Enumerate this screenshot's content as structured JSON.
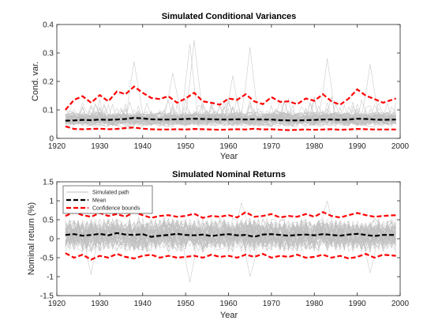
{
  "chart_data": [
    {
      "type": "line",
      "title": "Simulated Conditional Variances",
      "xlabel": "Year",
      "ylabel": "Cond. var.",
      "xlim": [
        1920,
        2000
      ],
      "ylim": [
        0,
        0.4
      ],
      "xticks": [
        1920,
        1930,
        1940,
        1950,
        1960,
        1970,
        1980,
        1990,
        2000
      ],
      "yticks": [
        0,
        0.1,
        0.2,
        0.3,
        0.4
      ],
      "xtick_labels": [
        "1920",
        "1930",
        "1940",
        "1950",
        "1960",
        "1970",
        "1980",
        "1990",
        "2000"
      ],
      "ytick_labels": [
        "0",
        "0.1",
        "0.2",
        "0.3",
        "0.4"
      ],
      "grid": false,
      "series": [
        {
          "role": "simulated-paths",
          "color": "#c0c0c0",
          "x_start": 1922,
          "x_end": 1999,
          "center": 0.065,
          "spread": 0.045,
          "floor": 0.02,
          "spikes": [
            [
              1951,
              0.33
            ],
            [
              1952,
              0.345
            ],
            [
              1965,
              0.32
            ],
            [
              1938,
              0.27
            ],
            [
              1983,
              0.28
            ],
            [
              1993,
              0.26
            ],
            [
              1947,
              0.23
            ],
            [
              1961,
              0.22
            ]
          ]
        },
        {
          "role": "mean",
          "color": "#000000",
          "x": [
            1922,
            1924,
            1926,
            1928,
            1930,
            1932,
            1934,
            1936,
            1938,
            1940,
            1942,
            1944,
            1946,
            1948,
            1950,
            1952,
            1954,
            1956,
            1958,
            1960,
            1962,
            1964,
            1966,
            1968,
            1970,
            1972,
            1974,
            1976,
            1978,
            1980,
            1982,
            1984,
            1986,
            1988,
            1990,
            1992,
            1994,
            1996,
            1999
          ],
          "y": [
            0.062,
            0.063,
            0.065,
            0.064,
            0.066,
            0.065,
            0.066,
            0.068,
            0.072,
            0.07,
            0.067,
            0.066,
            0.066,
            0.067,
            0.068,
            0.069,
            0.068,
            0.067,
            0.066,
            0.066,
            0.067,
            0.066,
            0.067,
            0.066,
            0.066,
            0.064,
            0.063,
            0.063,
            0.064,
            0.065,
            0.066,
            0.066,
            0.065,
            0.066,
            0.069,
            0.068,
            0.066,
            0.065,
            0.066
          ]
        },
        {
          "role": "upper-bound",
          "color": "#ff0000",
          "x": [
            1922,
            1924,
            1926,
            1928,
            1930,
            1932,
            1934,
            1936,
            1938,
            1940,
            1942,
            1944,
            1946,
            1948,
            1950,
            1952,
            1954,
            1956,
            1958,
            1960,
            1962,
            1964,
            1966,
            1968,
            1970,
            1972,
            1974,
            1976,
            1978,
            1980,
            1982,
            1984,
            1986,
            1988,
            1990,
            1992,
            1994,
            1996,
            1999
          ],
          "y": [
            0.1,
            0.135,
            0.148,
            0.125,
            0.152,
            0.13,
            0.165,
            0.155,
            0.182,
            0.16,
            0.142,
            0.138,
            0.148,
            0.125,
            0.14,
            0.16,
            0.13,
            0.125,
            0.118,
            0.14,
            0.135,
            0.155,
            0.13,
            0.12,
            0.145,
            0.128,
            0.13,
            0.12,
            0.14,
            0.132,
            0.155,
            0.13,
            0.118,
            0.14,
            0.172,
            0.15,
            0.138,
            0.125,
            0.14
          ]
        },
        {
          "role": "lower-bound",
          "color": "#ff0000",
          "x": [
            1922,
            1924,
            1926,
            1928,
            1930,
            1932,
            1934,
            1936,
            1938,
            1940,
            1942,
            1944,
            1946,
            1948,
            1950,
            1952,
            1954,
            1956,
            1958,
            1960,
            1962,
            1964,
            1966,
            1968,
            1970,
            1972,
            1974,
            1976,
            1978,
            1980,
            1982,
            1984,
            1986,
            1988,
            1990,
            1992,
            1994,
            1996,
            1999
          ],
          "y": [
            0.042,
            0.033,
            0.032,
            0.033,
            0.034,
            0.032,
            0.033,
            0.036,
            0.038,
            0.034,
            0.032,
            0.031,
            0.031,
            0.032,
            0.031,
            0.033,
            0.032,
            0.031,
            0.03,
            0.031,
            0.032,
            0.031,
            0.034,
            0.031,
            0.032,
            0.03,
            0.029,
            0.03,
            0.031,
            0.03,
            0.031,
            0.032,
            0.03,
            0.031,
            0.033,
            0.032,
            0.031,
            0.031,
            0.031
          ]
        }
      ]
    },
    {
      "type": "line",
      "title": "Simulated Nominal Returns",
      "xlabel": "Year",
      "ylabel": "Nominal return (%)",
      "xlim": [
        1920,
        2000
      ],
      "ylim": [
        -1.5,
        1.5
      ],
      "xticks": [
        1920,
        1930,
        1940,
        1950,
        1960,
        1970,
        1980,
        1990,
        2000
      ],
      "yticks": [
        -1.5,
        -1,
        -0.5,
        0,
        0.5,
        1,
        1.5
      ],
      "xtick_labels": [
        "1920",
        "1930",
        "1940",
        "1950",
        "1960",
        "1970",
        "1980",
        "1990",
        "2000"
      ],
      "ytick_labels": [
        "-1.5",
        "-1",
        "-0.5",
        "0",
        "0.5",
        "1",
        "1.5"
      ],
      "grid": false,
      "legend": {
        "placement": "top-left",
        "entries": [
          "Simulated path",
          "Mean",
          "Confidence bounds"
        ]
      },
      "series": [
        {
          "role": "simulated-paths",
          "name": "Simulated path",
          "color": "#c0c0c0",
          "x_start": 1922,
          "x_end": 1999,
          "center": 0.1,
          "spread": 0.3,
          "spikes": [
            [
              1951,
              -1.15
            ],
            [
              1965,
              -1.0
            ],
            [
              1938,
              1.05
            ],
            [
              1983,
              1.0
            ],
            [
              1963,
              0.95
            ],
            [
              1928,
              -0.95
            ],
            [
              1993,
              -0.9
            ]
          ]
        },
        {
          "role": "mean",
          "name": "Mean",
          "color": "#000000",
          "x": [
            1922,
            1924,
            1926,
            1928,
            1930,
            1932,
            1934,
            1936,
            1938,
            1940,
            1942,
            1944,
            1946,
            1948,
            1950,
            1952,
            1954,
            1956,
            1958,
            1960,
            1962,
            1964,
            1966,
            1968,
            1970,
            1972,
            1974,
            1976,
            1978,
            1980,
            1982,
            1984,
            1986,
            1988,
            1990,
            1992,
            1994,
            1996,
            1999
          ],
          "y": [
            0.1,
            0.12,
            0.08,
            0.1,
            0.13,
            0.09,
            0.15,
            0.11,
            0.1,
            0.12,
            0.05,
            0.08,
            0.1,
            0.13,
            0.1,
            0.09,
            0.11,
            0.07,
            0.1,
            0.12,
            0.09,
            0.1,
            0.05,
            0.11,
            0.12,
            0.1,
            0.08,
            0.1,
            0.11,
            0.09,
            0.12,
            0.1,
            0.08,
            0.11,
            0.13,
            0.1,
            0.07,
            0.1,
            0.1
          ]
        },
        {
          "role": "upper-bound",
          "name": "Confidence bounds",
          "color": "#ff0000",
          "x": [
            1922,
            1924,
            1926,
            1928,
            1930,
            1932,
            1934,
            1936,
            1938,
            1940,
            1942,
            1944,
            1946,
            1948,
            1950,
            1952,
            1954,
            1956,
            1958,
            1960,
            1962,
            1964,
            1966,
            1968,
            1970,
            1972,
            1974,
            1976,
            1978,
            1980,
            1982,
            1984,
            1986,
            1988,
            1990,
            1992,
            1994,
            1996,
            1999
          ],
          "y": [
            0.6,
            0.7,
            0.62,
            0.58,
            0.68,
            0.6,
            0.65,
            0.58,
            0.7,
            0.62,
            0.55,
            0.6,
            0.62,
            0.58,
            0.6,
            0.66,
            0.55,
            0.6,
            0.58,
            0.62,
            0.56,
            0.7,
            0.58,
            0.6,
            0.65,
            0.56,
            0.6,
            0.58,
            0.65,
            0.58,
            0.7,
            0.6,
            0.56,
            0.62,
            0.68,
            0.62,
            0.58,
            0.6,
            0.62
          ]
        },
        {
          "role": "lower-bound",
          "color": "#ff0000",
          "x": [
            1922,
            1924,
            1926,
            1928,
            1930,
            1932,
            1934,
            1936,
            1938,
            1940,
            1942,
            1944,
            1946,
            1948,
            1950,
            1952,
            1954,
            1956,
            1958,
            1960,
            1962,
            1964,
            1966,
            1968,
            1970,
            1972,
            1974,
            1976,
            1978,
            1980,
            1982,
            1984,
            1986,
            1988,
            1990,
            1992,
            1994,
            1996,
            1999
          ],
          "y": [
            -0.38,
            -0.5,
            -0.42,
            -0.55,
            -0.45,
            -0.5,
            -0.4,
            -0.48,
            -0.52,
            -0.45,
            -0.42,
            -0.5,
            -0.45,
            -0.5,
            -0.48,
            -0.45,
            -0.5,
            -0.42,
            -0.48,
            -0.45,
            -0.5,
            -0.42,
            -0.48,
            -0.4,
            -0.5,
            -0.45,
            -0.48,
            -0.42,
            -0.5,
            -0.48,
            -0.42,
            -0.5,
            -0.45,
            -0.52,
            -0.48,
            -0.4,
            -0.5,
            -0.42,
            -0.45
          ]
        }
      ]
    }
  ]
}
